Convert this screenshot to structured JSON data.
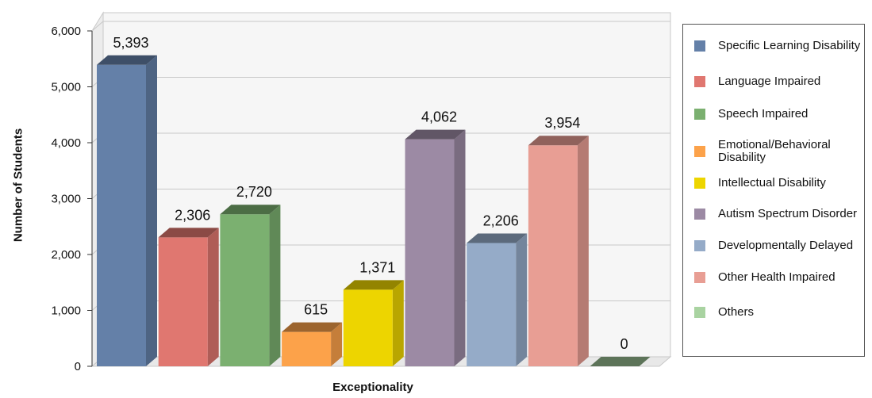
{
  "chart_data": {
    "type": "bar",
    "xlabel": "Exceptionality",
    "ylabel": "Number of Students",
    "ylim": [
      0,
      6000
    ],
    "yticks": [
      "0",
      "1,000",
      "2,000",
      "3,000",
      "4,000",
      "5,000",
      "6,000"
    ],
    "grid": true,
    "legend_position": "right",
    "series": [
      {
        "name": "Specific Learning Disability",
        "value": 5393,
        "label": "5,393",
        "color": "#6480a8"
      },
      {
        "name": "Language Impaired",
        "value": 2306,
        "label": "2,306",
        "color": "#e07770"
      },
      {
        "name": "Speech Impaired",
        "value": 2720,
        "label": "2,720",
        "color": "#7bb070"
      },
      {
        "name": "Emotional/Behavioral Disability",
        "value": 615,
        "label": "615",
        "color": "#fca24a"
      },
      {
        "name": "Intellectual Disability",
        "value": 1371,
        "label": "1,371",
        "color": "#edd500"
      },
      {
        "name": "Autism Spectrum Disorder",
        "value": 4062,
        "label": "4,062",
        "color": "#9c8aa4"
      },
      {
        "name": "Developmentally Delayed",
        "value": 2206,
        "label": "2,206",
        "color": "#95abc8"
      },
      {
        "name": "Other Health Impaired",
        "value": 3954,
        "label": "3,954",
        "color": "#e89e94"
      },
      {
        "name": "Others",
        "value": 0,
        "label": "0",
        "color": "#a9d3a1"
      }
    ]
  }
}
